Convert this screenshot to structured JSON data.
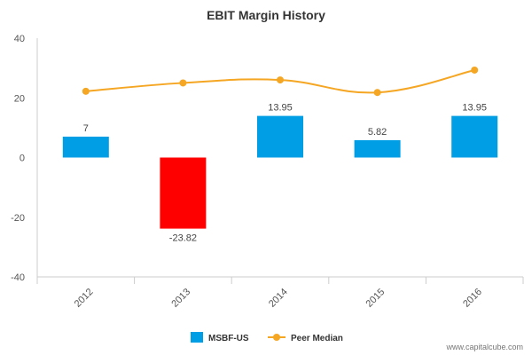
{
  "chart_data": {
    "type": "bar",
    "title": "EBIT Margin History",
    "categories": [
      "2012",
      "2013",
      "2014",
      "2015",
      "2016"
    ],
    "series": [
      {
        "name": "MSBF-US",
        "type": "bar",
        "values": [
          7,
          -23.82,
          13.95,
          5.82,
          13.95
        ],
        "labels": [
          "7",
          "-23.82",
          "13.95",
          "5.82",
          "13.95"
        ],
        "color": "#009ee5",
        "negative_color": "#ff0000"
      },
      {
        "name": "Peer Median",
        "type": "line",
        "values": [
          22.2,
          25,
          26,
          21.8,
          29.3
        ],
        "color": "#f5a623"
      }
    ],
    "ylim": [
      -40,
      40
    ],
    "yticks": [
      -40,
      -20,
      0,
      20,
      40
    ],
    "xlabel": "",
    "ylabel": "",
    "grid": false,
    "legend_position": "bottom-center"
  },
  "watermark": "www.capitalcube.com"
}
